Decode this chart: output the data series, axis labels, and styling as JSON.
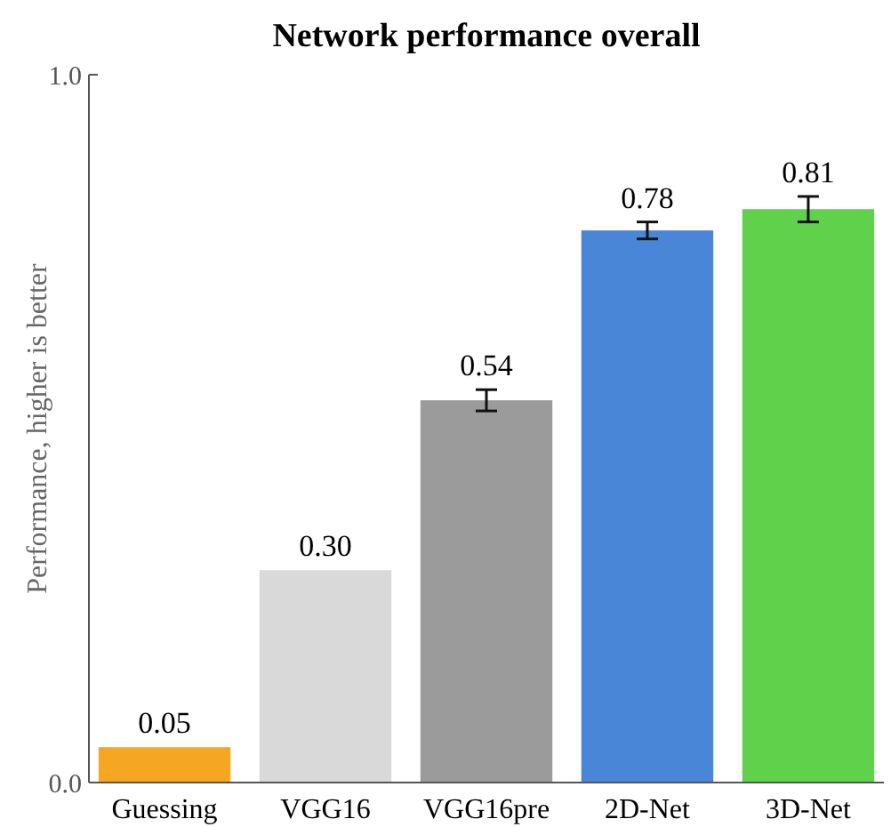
{
  "chart_data": {
    "type": "bar",
    "title": "Network performance overall",
    "ylabel": "Performance, higher is better",
    "categories": [
      "Guessing",
      "VGG16",
      "VGG16pre",
      "2D-Net",
      "3D-Net"
    ],
    "values": [
      0.05,
      0.3,
      0.54,
      0.78,
      0.81
    ],
    "colors": [
      "#f5a623",
      "#d9d9d9",
      "#9b9b9b",
      "#4a86d8",
      "#5fd14b"
    ],
    "errors": [
      null,
      null,
      0.015,
      0.012,
      0.018
    ],
    "ylim": [
      0,
      1
    ],
    "yticks": [
      {
        "value": 0,
        "label": "0.0"
      },
      {
        "value": 1,
        "label": "1.0"
      }
    ],
    "value_labels": [
      "0.05",
      "0.30",
      "0.54",
      "0.78",
      "0.81"
    ],
    "grid": false
  }
}
